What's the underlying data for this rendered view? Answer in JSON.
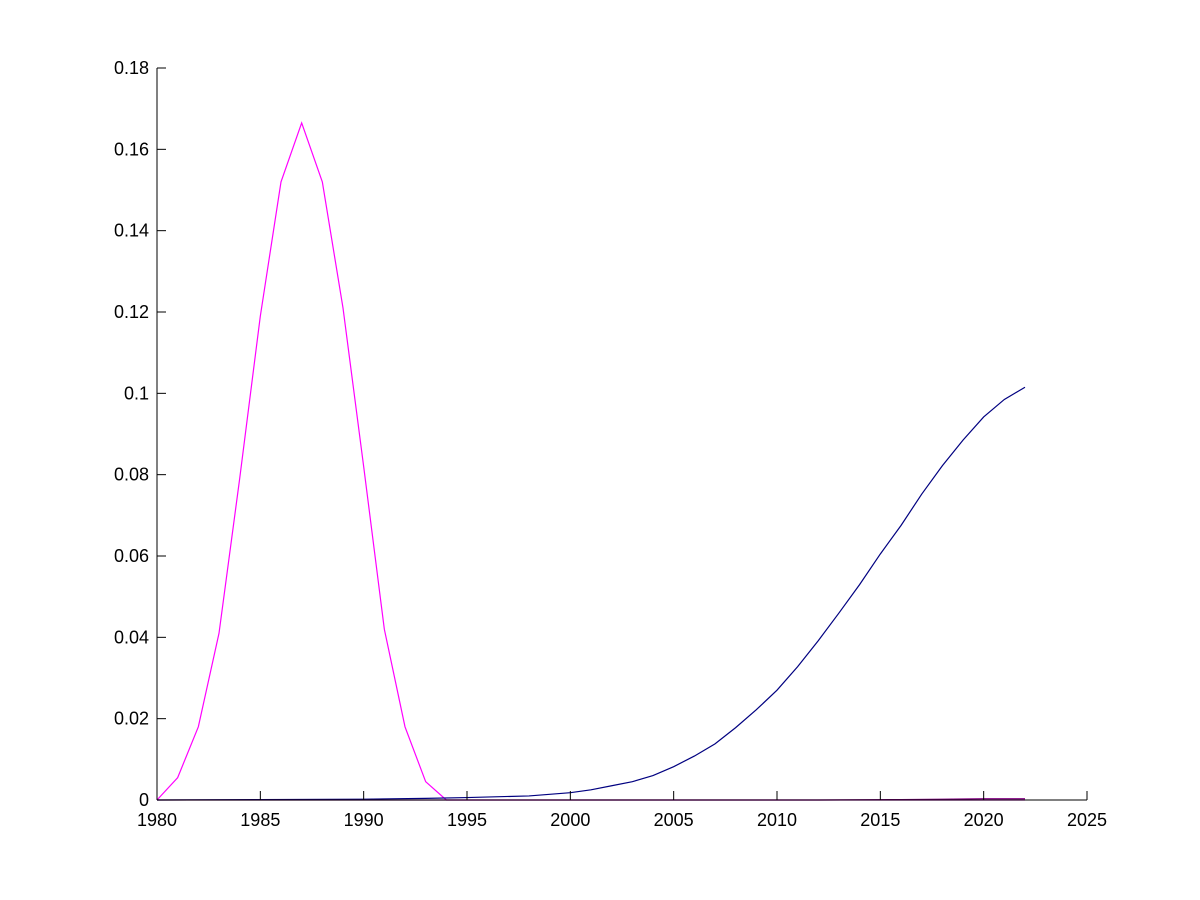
{
  "chart_data": {
    "type": "line",
    "title": "",
    "xlabel": "",
    "ylabel": "",
    "xlim": [
      1980,
      2025
    ],
    "ylim": [
      0,
      0.18
    ],
    "x_ticks": [
      1980,
      1985,
      1990,
      1995,
      2000,
      2005,
      2010,
      2015,
      2020,
      2025
    ],
    "y_ticks": [
      0,
      0.02,
      0.04,
      0.06,
      0.08,
      0.1,
      0.12,
      0.14,
      0.16,
      0.18
    ],
    "x_tick_labels": [
      "1980",
      "1985",
      "1990",
      "1995",
      "2000",
      "2005",
      "2010",
      "2015",
      "2020",
      "2025"
    ],
    "y_tick_labels": [
      "0",
      "0.02",
      "0.04",
      "0.06",
      "0.08",
      "0.1",
      "0.12",
      "0.14",
      "0.16",
      "0.18"
    ],
    "grid": false,
    "series": [
      {
        "color": "#ff00ff",
        "x": [
          1980,
          1981,
          1982,
          1983,
          1984,
          1985,
          1986,
          1987,
          1988,
          1989,
          1990,
          1991,
          1992,
          1993,
          1994,
          1995,
          2000,
          2005,
          2010,
          2015,
          2020,
          2022
        ],
        "y": [
          0,
          0.0055,
          0.018,
          0.041,
          0.079,
          0.119,
          0.152,
          0.1665,
          0.152,
          0.121,
          0.082,
          0.042,
          0.018,
          0.0045,
          0,
          0,
          0,
          0,
          0,
          0,
          0,
          0
        ]
      },
      {
        "color": "#000080",
        "x": [
          1980,
          1985,
          1990,
          1993,
          1995,
          1998,
          2000,
          2001,
          2002,
          2003,
          2004,
          2005,
          2006,
          2007,
          2008,
          2009,
          2010,
          2011,
          2012,
          2013,
          2014,
          2015,
          2016,
          2017,
          2018,
          2019,
          2020,
          2021,
          2022
        ],
        "y": [
          0,
          0.0001,
          0.0002,
          0.0004,
          0.0006,
          0.001,
          0.0018,
          0.0025,
          0.0035,
          0.0045,
          0.006,
          0.0082,
          0.0108,
          0.0138,
          0.0178,
          0.0222,
          0.027,
          0.0328,
          0.0392,
          0.046,
          0.053,
          0.0605,
          0.0675,
          0.0752,
          0.0822,
          0.0885,
          0.0942,
          0.0985,
          0.1015
        ]
      },
      {
        "color": "#800080",
        "x": [
          1980,
          2012,
          2016,
          2018,
          2020,
          2022
        ],
        "y": [
          0,
          0,
          0.0001,
          0.0002,
          0.0003,
          0.0003
        ]
      }
    ]
  }
}
